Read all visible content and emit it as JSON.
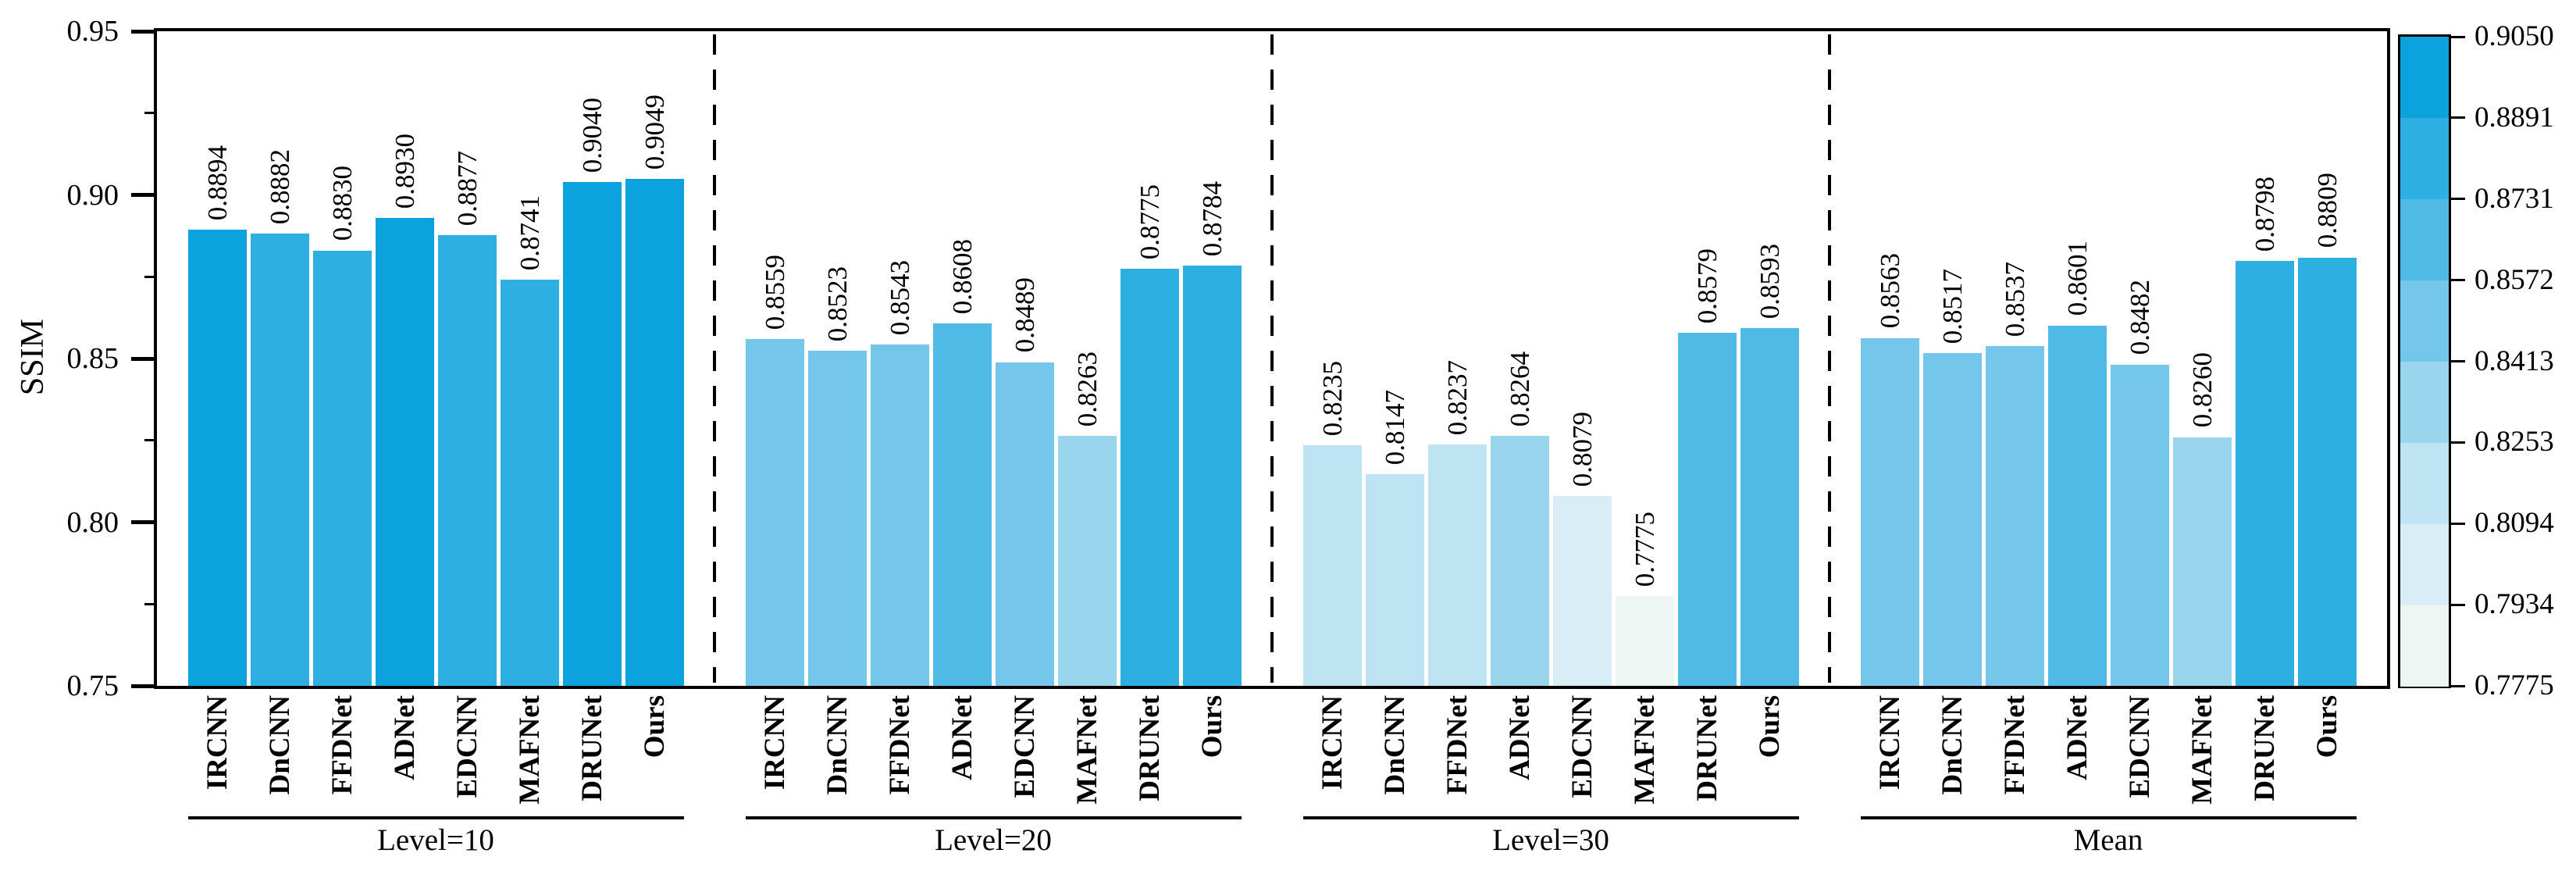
{
  "chart_data": {
    "type": "bar",
    "title": "",
    "xlabel": "",
    "ylabel": "SSIM",
    "ylim": [
      0.75,
      0.95
    ],
    "y_major_ticks": [
      0.75,
      0.8,
      0.85,
      0.9,
      0.95
    ],
    "y_tick_labels": [
      "0.75",
      "0.80",
      "0.85",
      "0.90",
      "0.95"
    ],
    "y_minor_ticks": [
      0.775,
      0.825,
      0.875,
      0.925
    ],
    "grid": false,
    "legend": "none (colorbar encodes value)",
    "categories": [
      "IRCNN",
      "DnCNN",
      "FFDNet",
      "ADNet",
      "EDCNN",
      "MAFNet",
      "DRUNet",
      "Ours"
    ],
    "groups": [
      {
        "label": "Level=10",
        "values": [
          0.8894,
          0.8882,
          0.883,
          0.893,
          0.8877,
          0.8741,
          0.904,
          0.9049
        ]
      },
      {
        "label": "Level=20",
        "values": [
          0.8559,
          0.8523,
          0.8543,
          0.8608,
          0.8489,
          0.8263,
          0.8775,
          0.8784
        ]
      },
      {
        "label": "Level=30",
        "values": [
          0.8235,
          0.8147,
          0.8237,
          0.8264,
          0.8079,
          0.7775,
          0.8579,
          0.8593
        ]
      },
      {
        "label": "Mean",
        "values": [
          0.8563,
          0.8517,
          0.8537,
          0.8601,
          0.8482,
          0.826,
          0.8798,
          0.8809
        ]
      }
    ],
    "bar_value_label_decimals": 4,
    "separator_style": "vertical dashed black lines between groups",
    "colorbar": {
      "min": 0.7775,
      "max": 0.905,
      "tick_labels_top_to_bottom": [
        "0.9050",
        "0.8891",
        "0.8731",
        "0.8572",
        "0.8413",
        "0.8253",
        "0.8094",
        "0.7934",
        "0.7775"
      ],
      "segment_colors_bottom_to_top": [
        "#eef6f4",
        "#d9edf6",
        "#bee3f3",
        "#9ad5ee",
        "#74c7ea",
        "#4fbae6",
        "#2eafe2",
        "#0ba2dd"
      ]
    },
    "colors": {
      "axis": "#000000",
      "background": "#ffffff",
      "bar_max": "#0ba2dd",
      "bar_min": "#eef6f4"
    }
  }
}
